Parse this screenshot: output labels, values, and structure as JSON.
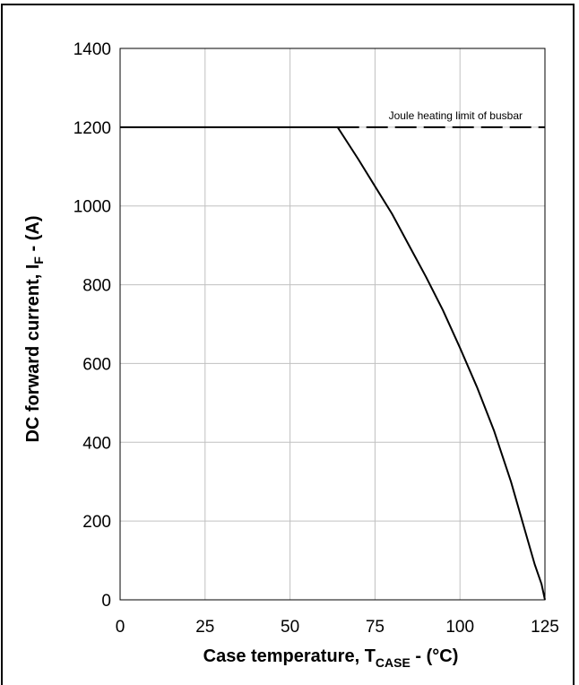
{
  "chart_data": {
    "type": "line",
    "xlabel": "Case temperature, T",
    "xlabel_sub": "CASE",
    "xlabel_tail": "  - (°C)",
    "ylabel": "DC forward current, I",
    "ylabel_sub": "F",
    "ylabel_tail": " - (A)",
    "xlim": [
      0,
      125
    ],
    "ylim": [
      0,
      1400
    ],
    "x_ticks": [
      "0",
      "25",
      "50",
      "75",
      "100",
      "125"
    ],
    "y_ticks": [
      "0",
      "200",
      "400",
      "600",
      "800",
      "1000",
      "1200",
      "1400"
    ],
    "grid": true,
    "annotation": "Joule heating limit of busbar",
    "series": [
      {
        "style": "solid",
        "color": "#000000",
        "x": [
          0,
          64,
          70,
          75,
          80,
          85,
          90,
          95,
          100,
          105,
          110,
          115,
          120,
          122,
          124,
          125
        ],
        "y": [
          1200,
          1200,
          1120,
          1050,
          980,
          900,
          820,
          735,
          640,
          540,
          430,
          300,
          150,
          90,
          40,
          0
        ]
      },
      {
        "style": "dashed",
        "color": "#000000",
        "x": [
          64,
          125
        ],
        "y": [
          1200,
          1200
        ]
      }
    ]
  }
}
